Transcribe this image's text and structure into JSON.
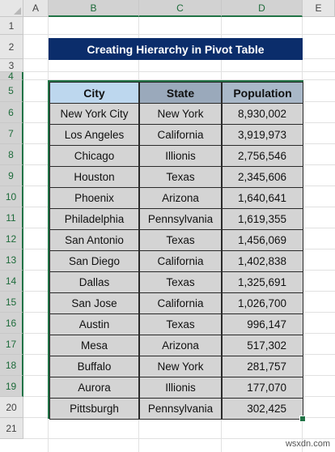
{
  "columns": [
    "A",
    "B",
    "C",
    "D",
    "E"
  ],
  "rows": [
    "1",
    "2",
    "3",
    "4",
    "5",
    "6",
    "7",
    "8",
    "9",
    "10",
    "11",
    "12",
    "13",
    "14",
    "15",
    "16",
    "17",
    "18",
    "19",
    "20",
    "21"
  ],
  "title": "Creating Hierarchy in Pivot Table",
  "table": {
    "headers": [
      "City",
      "State",
      "Population"
    ],
    "data": [
      [
        "New York City",
        "New York",
        "8,930,002"
      ],
      [
        "Los Angeles",
        "California",
        "3,919,973"
      ],
      [
        "Chicago",
        "Illionis",
        "2,756,546"
      ],
      [
        "Houston",
        "Texas",
        "2,345,606"
      ],
      [
        "Phoenix",
        "Arizona",
        "1,640,641"
      ],
      [
        "Philadelphia",
        "Pennsylvania",
        "1,619,355"
      ],
      [
        "San Antonio",
        "Texas",
        "1,456,069"
      ],
      [
        "San Diego",
        "California",
        "1,402,838"
      ],
      [
        "Dallas",
        "Texas",
        "1,325,691"
      ],
      [
        "San Jose",
        "California",
        "1,026,700"
      ],
      [
        "Austin",
        "Texas",
        "996,147"
      ],
      [
        "Mesa",
        "Arizona",
        "517,302"
      ],
      [
        "Buffalo",
        "New York",
        "281,757"
      ],
      [
        "Aurora",
        "Illionis",
        "177,070"
      ],
      [
        "Pittsburgh",
        "Pennsylvania",
        "302,425"
      ]
    ]
  },
  "watermark": "wsxdn.com",
  "colors": {
    "title_bg": "#0b2d6b",
    "selection": "#217346",
    "cell_bg": "#d4d4d4"
  }
}
